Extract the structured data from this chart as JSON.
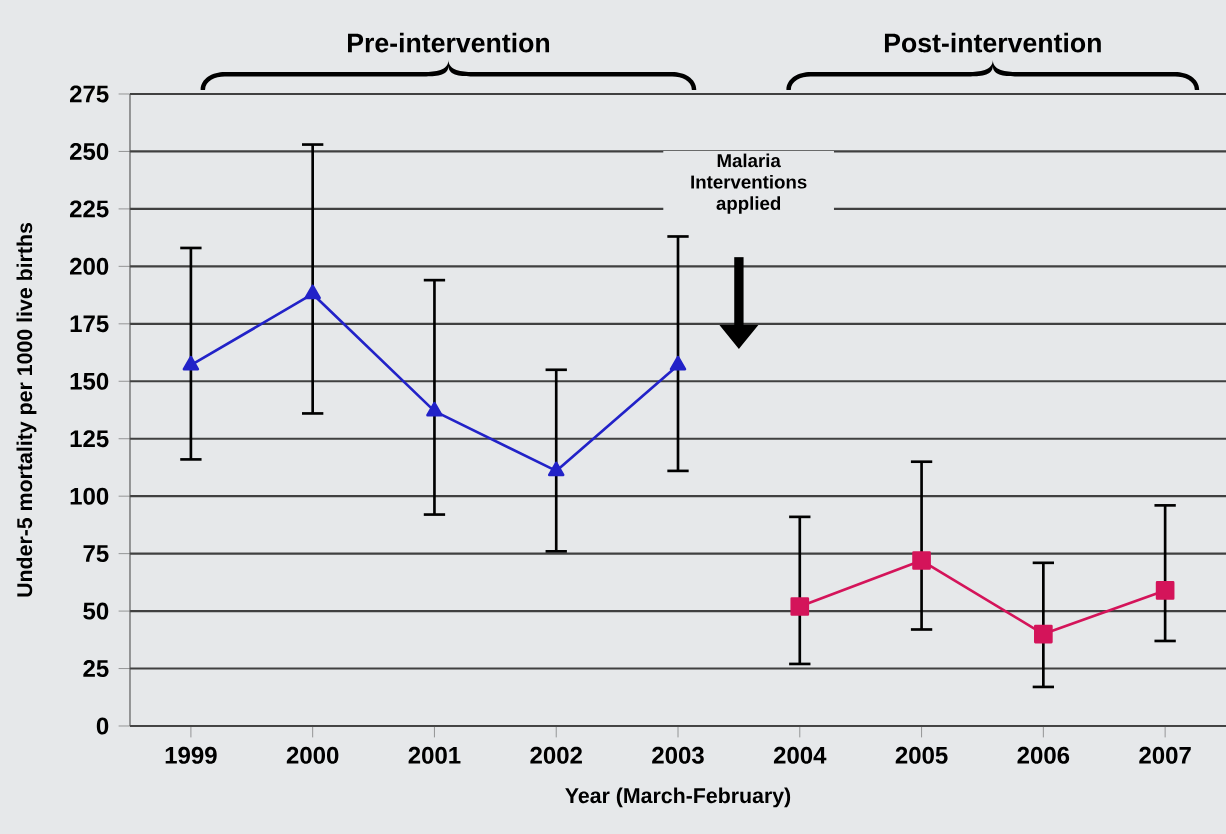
{
  "chart_data": {
    "type": "line",
    "xlabel": "Year (March-February)",
    "ylabel": "Under-5 mortality per 1000 live births",
    "categories": [
      "1999",
      "2000",
      "2001",
      "2002",
      "2003",
      "2004",
      "2005",
      "2006",
      "2007"
    ],
    "series": [
      {
        "color": "#2222c8",
        "marker": "triangle",
        "values": [
          157,
          188,
          137,
          111,
          157,
          null,
          null,
          null,
          null
        ],
        "errors": [
          [
            116,
            208
          ],
          [
            136,
            253
          ],
          [
            92,
            194
          ],
          [
            76,
            155
          ],
          [
            111,
            213
          ],
          null,
          null,
          null,
          null
        ]
      },
      {
        "color": "#d4145a",
        "marker": "square",
        "values": [
          null,
          null,
          null,
          null,
          null,
          52,
          72,
          40,
          59
        ],
        "errors": [
          null,
          null,
          null,
          null,
          null,
          [
            27,
            91
          ],
          [
            42,
            115
          ],
          [
            17,
            71
          ],
          [
            37,
            96
          ]
        ]
      }
    ],
    "ylim": [
      0,
      275
    ],
    "yticks": [
      0,
      25,
      50,
      75,
      100,
      125,
      150,
      175,
      200,
      225,
      250,
      275
    ],
    "grid": "y",
    "annotations": [
      "Pre-intervention",
      "Post-intervention",
      "Malaria Interventions applied"
    ]
  }
}
